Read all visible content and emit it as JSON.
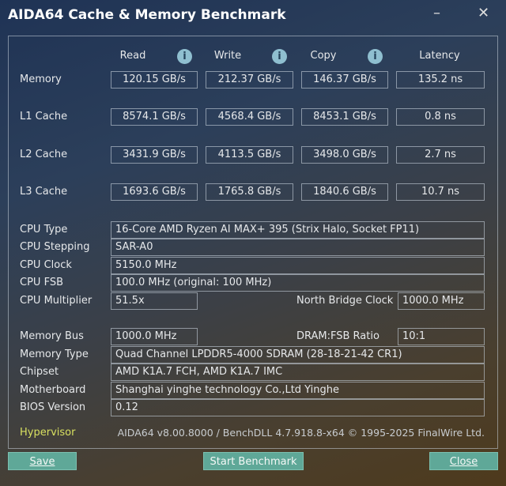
{
  "window": {
    "title": "AIDA64 Cache & Memory Benchmark",
    "minimize": "–",
    "close": "✕"
  },
  "columns": [
    "Read",
    "Write",
    "Copy",
    "Latency"
  ],
  "bench_rows": [
    {
      "label": "Memory",
      "values": [
        "120.15 GB/s",
        "212.37 GB/s",
        "146.37 GB/s",
        "135.2 ns"
      ]
    },
    {
      "label": "L1 Cache",
      "values": [
        "8574.1 GB/s",
        "4568.4 GB/s",
        "8453.1 GB/s",
        "0.8 ns"
      ]
    },
    {
      "label": "L2 Cache",
      "values": [
        "3431.9 GB/s",
        "4113.5 GB/s",
        "3498.0 GB/s",
        "2.7 ns"
      ]
    },
    {
      "label": "L3 Cache",
      "values": [
        "1693.6 GB/s",
        "1765.8 GB/s",
        "1840.6 GB/s",
        "10.7 ns"
      ]
    }
  ],
  "info": {
    "cpu_type": {
      "label": "CPU Type",
      "value": "16-Core AMD Ryzen AI MAX+ 395  (Strix Halo, Socket FP11)"
    },
    "cpu_stepping": {
      "label": "CPU Stepping",
      "value": "SAR-A0"
    },
    "cpu_clock": {
      "label": "CPU Clock",
      "value": "5150.0 MHz"
    },
    "cpu_fsb": {
      "label": "CPU FSB",
      "value": "100.0 MHz  (original: 100 MHz)"
    },
    "cpu_multiplier": {
      "label": "CPU Multiplier",
      "value": "51.5x"
    },
    "nb_clock": {
      "label": "North Bridge Clock",
      "value": "1000.0 MHz"
    },
    "memory_bus": {
      "label": "Memory Bus",
      "value": "1000.0 MHz"
    },
    "dram_fsb": {
      "label": "DRAM:FSB Ratio",
      "value": "10:1"
    },
    "memory_type": {
      "label": "Memory Type",
      "value": "Quad Channel LPDDR5-4000 SDRAM  (28-18-21-42 CR1)"
    },
    "chipset": {
      "label": "Chipset",
      "value": "AMD K1A.7 FCH, AMD K1A.7 IMC"
    },
    "motherboard": {
      "label": "Motherboard",
      "value": "Shanghai yinghe technology Co.,Ltd Yinghe"
    },
    "bios": {
      "label": "BIOS Version",
      "value": "0.12"
    }
  },
  "footer": {
    "hypervisor": "Hypervisor",
    "version": "AIDA64 v8.00.8000 / BenchDLL 4.7.918.8-x64 © 1995-2025 FinalWire Ltd."
  },
  "buttons": {
    "save": "Save",
    "start": "Start Benchmark",
    "close": "Close"
  },
  "colors": {
    "button": "#5fa898",
    "hypervisor": "#d8e060",
    "info_icon": "#8fbfd0"
  }
}
